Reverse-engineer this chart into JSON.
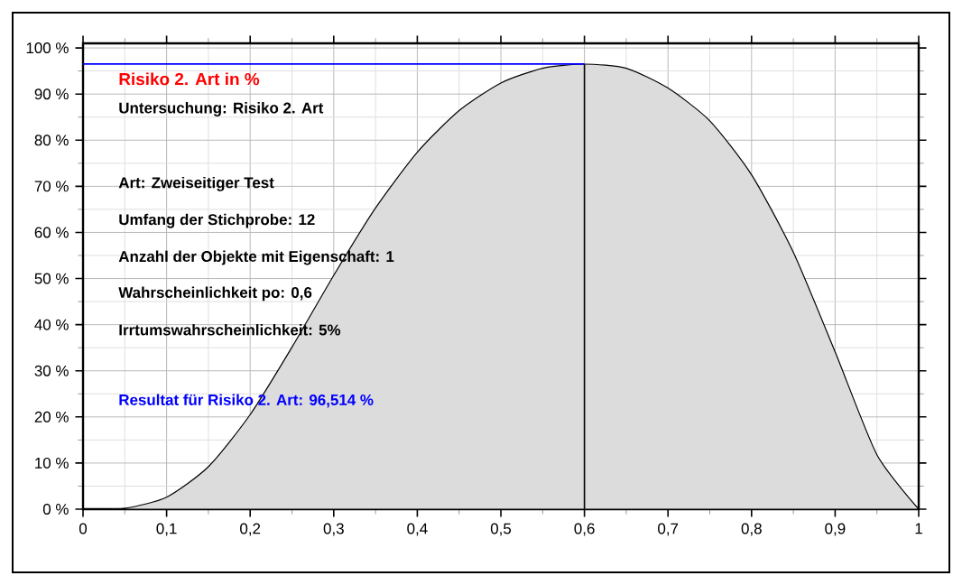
{
  "chart_data": {
    "type": "area",
    "title": "Risiko 2. Art in %",
    "x": [
      0,
      0.05,
      0.1,
      0.15,
      0.2,
      0.25,
      0.3,
      0.35,
      0.4,
      0.45,
      0.5,
      0.55,
      0.6,
      0.65,
      0.7,
      0.75,
      0.8,
      0.85,
      0.9,
      0.95,
      1
    ],
    "series": [
      {
        "color": "#dcdcdc",
        "values": [
          0,
          0.2,
          2.6,
          9.2,
          20.5,
          35.1,
          50.7,
          65.3,
          77.4,
          86.4,
          92.4,
          95.6,
          96.5,
          95.6,
          91.3,
          84.2,
          72.5,
          55.7,
          34.1,
          11.8,
          0
        ]
      }
    ],
    "xlim": [
      0,
      1
    ],
    "ylim": [
      0,
      101
    ],
    "xticks": [
      0,
      {
        "value": 0.1,
        "label": "0,1"
      },
      {
        "value": 0.2,
        "label": "0,2"
      },
      {
        "value": 0.3,
        "label": "0,3"
      },
      {
        "value": 0.4,
        "label": "0,4"
      },
      {
        "value": 0.5,
        "label": "0,5"
      },
      {
        "value": 0.6,
        "label": "0,6"
      },
      {
        "value": 0.7,
        "label": "0,7"
      },
      {
        "value": 0.8,
        "label": "0,8"
      },
      {
        "value": 0.9,
        "label": "0,9"
      },
      1
    ],
    "yticks": [
      {
        "value": 0,
        "label": "0 %"
      },
      {
        "value": 10,
        "label": "10 %"
      },
      {
        "value": 20,
        "label": "20 %"
      },
      {
        "value": 30,
        "label": "30 %"
      },
      {
        "value": 40,
        "label": "40 %"
      },
      {
        "value": 50,
        "label": "50 %"
      },
      {
        "value": 60,
        "label": "60 %"
      },
      {
        "value": 70,
        "label": "70 %"
      },
      {
        "value": 80,
        "label": "80 %"
      },
      {
        "value": 90,
        "label": "90 %"
      },
      {
        "value": 100,
        "label": "100 %"
      }
    ],
    "grid": true,
    "ref_lines": [
      {
        "axis": "x",
        "value": 0.6,
        "color": "#000000"
      },
      {
        "axis": "y",
        "value": 96.514,
        "color": "#0000ff"
      }
    ],
    "annotations": [
      "Untersuchung: Risiko 2. Art",
      "Art: Zweiseitiger Test",
      "Umfang der Stichprobe: 12",
      "Anzahl der Objekte mit Eigenschaft: 1",
      "Wahrscheinlichkeit po: 0,6",
      "Irrtumswahrscheinlichkeit: 5%",
      "Resultat für Risiko 2. Art: 96,514 %"
    ]
  }
}
